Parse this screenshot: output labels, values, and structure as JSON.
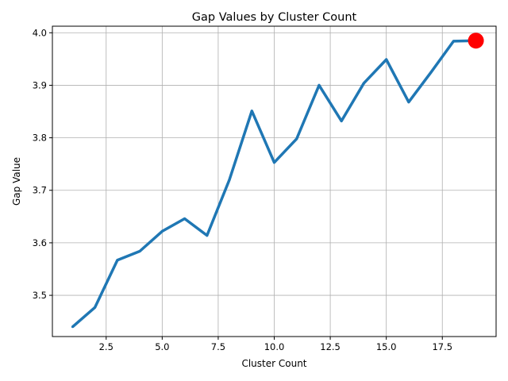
{
  "chart_data": {
    "type": "line",
    "title": "Gap Values by Cluster Count",
    "xlabel": "Cluster Count",
    "ylabel": "Gap Value",
    "xlim": [
      0.1,
      19.9
    ],
    "ylim": [
      3.4215,
      4.0125
    ],
    "xticks": [
      2.5,
      5.0,
      7.5,
      10.0,
      12.5,
      15.0,
      17.5
    ],
    "xtick_labels": [
      "2.5",
      "5.0",
      "7.5",
      "10.0",
      "12.5",
      "15.0",
      "17.5"
    ],
    "yticks": [
      3.5,
      3.6,
      3.7,
      3.8,
      3.9,
      4.0
    ],
    "ytick_labels": [
      "3.5",
      "3.6",
      "3.7",
      "3.8",
      "3.9",
      "4.0"
    ],
    "grid": true,
    "series": [
      {
        "color": "#1f77b4",
        "x": [
          1,
          2,
          3,
          4,
          5,
          6,
          7,
          8,
          9,
          10,
          11,
          12,
          13,
          14,
          15,
          16,
          17,
          18,
          19
        ],
        "values": [
          3.44,
          3.477,
          3.567,
          3.584,
          3.622,
          3.646,
          3.614,
          3.72,
          3.851,
          3.753,
          3.798,
          3.9,
          3.832,
          3.904,
          3.949,
          3.868,
          3.925,
          3.984,
          3.985
        ]
      }
    ],
    "highlight": {
      "x": 19,
      "y": 3.985,
      "color": "#ff0000"
    }
  }
}
